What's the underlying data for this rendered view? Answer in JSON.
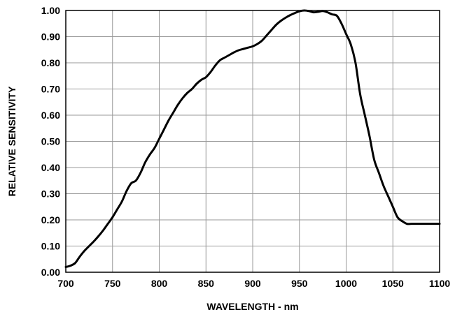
{
  "chart_data": {
    "type": "line",
    "title": "",
    "xlabel": "WAVELENGTH - nm",
    "ylabel": "RELATIVE SENSITIVITY",
    "xlim": [
      700,
      1100
    ],
    "ylim": [
      0,
      1.0
    ],
    "x_ticks": [
      700,
      750,
      800,
      850,
      900,
      950,
      1000,
      1050,
      1100
    ],
    "x_tick_labels": [
      "700",
      "750",
      "800",
      "850",
      "900",
      "950",
      "1000",
      "1050",
      "1100"
    ],
    "y_ticks": [
      0,
      0.1,
      0.2,
      0.3,
      0.4,
      0.5,
      0.6,
      0.7,
      0.8,
      0.9,
      1.0
    ],
    "y_tick_labels": [
      "0.00",
      "0.10",
      "0.20",
      "0.30",
      "0.40",
      "0.50",
      "0.60",
      "0.70",
      "0.80",
      "0.90",
      "1.00"
    ],
    "grid": true,
    "legend": "none",
    "line_color": "#000000",
    "grid_color": "#999999",
    "series": [
      {
        "x": [
          700,
          705,
          710,
          715,
          720,
          725,
          730,
          735,
          740,
          745,
          750,
          755,
          760,
          765,
          770,
          775,
          780,
          785,
          790,
          795,
          800,
          805,
          810,
          815,
          820,
          825,
          830,
          835,
          840,
          845,
          850,
          855,
          860,
          865,
          870,
          875,
          880,
          885,
          890,
          895,
          900,
          905,
          910,
          915,
          920,
          925,
          930,
          935,
          940,
          945,
          950,
          955,
          960,
          965,
          970,
          975,
          980,
          985,
          990,
          995,
          1000,
          1005,
          1010,
          1015,
          1020,
          1025,
          1030,
          1035,
          1040,
          1045,
          1050,
          1055,
          1060,
          1065,
          1070,
          1075,
          1080,
          1085,
          1090,
          1095,
          1100
        ],
        "y": [
          0.02,
          0.025,
          0.035,
          0.06,
          0.082,
          0.1,
          0.118,
          0.138,
          0.16,
          0.185,
          0.21,
          0.24,
          0.27,
          0.31,
          0.34,
          0.35,
          0.38,
          0.42,
          0.45,
          0.475,
          0.51,
          0.545,
          0.58,
          0.61,
          0.64,
          0.665,
          0.685,
          0.7,
          0.72,
          0.735,
          0.745,
          0.765,
          0.79,
          0.81,
          0.82,
          0.83,
          0.84,
          0.848,
          0.853,
          0.858,
          0.863,
          0.872,
          0.885,
          0.905,
          0.925,
          0.945,
          0.96,
          0.972,
          0.982,
          0.99,
          0.997,
          1.0,
          0.998,
          0.993,
          0.995,
          0.998,
          0.993,
          0.985,
          0.98,
          0.95,
          0.91,
          0.87,
          0.8,
          0.68,
          0.6,
          0.52,
          0.43,
          0.38,
          0.33,
          0.29,
          0.25,
          0.21,
          0.195,
          0.185,
          0.185,
          0.185,
          0.185,
          0.185,
          0.185,
          0.185,
          0.185
        ]
      }
    ]
  }
}
